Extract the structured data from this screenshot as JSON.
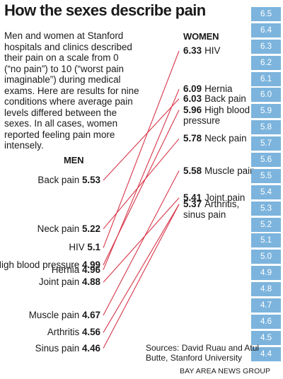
{
  "title": "How the sexes describe pain",
  "intro_lines": [
    "Men and women at Stanford",
    "hospitals and clinics described",
    "their pain on a scale from 0",
    "(“no pain”) to 10 (“worst pain",
    "imaginable”) during medical",
    "exams. Here are results for nine",
    "conditions where average pain",
    "levels differed between the",
    "sexes. In all cases, women",
    "reported feeling pain more",
    "intensely."
  ],
  "men_header": "MEN",
  "women_header": "WOMEN",
  "sources_lines": [
    "Sources: David Ruau and Atul",
    "Butte, Stanford University"
  ],
  "credit": "BAY AREA NEWS GROUP",
  "colors": {
    "line": "#d8364a",
    "scale": "#7cb4dd"
  },
  "chart_data": {
    "type": "slope",
    "scale_ticks": [
      "6.5",
      "6.4",
      "6.3",
      "6.2",
      "6.1",
      "6.0",
      "5.9",
      "5.8",
      "5.7",
      "5.6",
      "5.5",
      "5.4",
      "5.3",
      "5.2",
      "5.1",
      "5.0",
      "4.9",
      "4.8",
      "4.7",
      "4.6",
      "4.5",
      "4.4"
    ],
    "men": [
      {
        "name": "Back pain",
        "value": 5.53
      },
      {
        "name": "Neck pain",
        "value": 5.22
      },
      {
        "name": "HIV",
        "value": 5.1
      },
      {
        "name": "High blood pressure",
        "value": 4.99
      },
      {
        "name": "Hernia",
        "value": 4.96
      },
      {
        "name": "Joint pain",
        "value": 4.88
      },
      {
        "name": "Muscle pain",
        "value": 4.67
      },
      {
        "name": "Arthritis",
        "value": 4.56
      },
      {
        "name": "Sinus pain",
        "value": 4.46
      }
    ],
    "women": [
      {
        "name": "HIV",
        "value": 6.33,
        "lines": [
          "HIV"
        ]
      },
      {
        "name": "Hernia",
        "value": 6.09,
        "lines": [
          "Hernia"
        ]
      },
      {
        "name": "Back pain",
        "value": 6.03,
        "lines": [
          "Back pain"
        ]
      },
      {
        "name": "High blood pressure",
        "value": 5.96,
        "lines": [
          "High blood",
          "pressure"
        ]
      },
      {
        "name": "Neck pain",
        "value": 5.78,
        "lines": [
          "Neck pain"
        ]
      },
      {
        "name": "Muscle pain",
        "value": 5.58,
        "lines": [
          "Muscle pain"
        ]
      },
      {
        "name": "Joint pain",
        "value": 5.41,
        "lines": [
          "Joint pain"
        ]
      },
      {
        "name": "Arthritis, sinus pain",
        "value": 5.37,
        "lines": [
          "Arthritis,",
          "sinus pain"
        ]
      }
    ],
    "links": [
      {
        "condition": "HIV",
        "men": 5.1,
        "women": 6.33
      },
      {
        "condition": "Hernia",
        "men": 4.96,
        "women": 6.09
      },
      {
        "condition": "Back pain",
        "men": 5.53,
        "women": 6.03
      },
      {
        "condition": "High blood pressure",
        "men": 4.99,
        "women": 5.96
      },
      {
        "condition": "Neck pain",
        "men": 5.22,
        "women": 5.78
      },
      {
        "condition": "Muscle pain",
        "men": 4.67,
        "women": 5.58
      },
      {
        "condition": "Joint pain",
        "men": 4.88,
        "women": 5.41
      },
      {
        "condition": "Arthritis",
        "men": 4.56,
        "women": 5.37
      },
      {
        "condition": "Sinus pain",
        "men": 4.46,
        "women": 5.37
      }
    ],
    "ylim": [
      4.4,
      6.5
    ]
  }
}
